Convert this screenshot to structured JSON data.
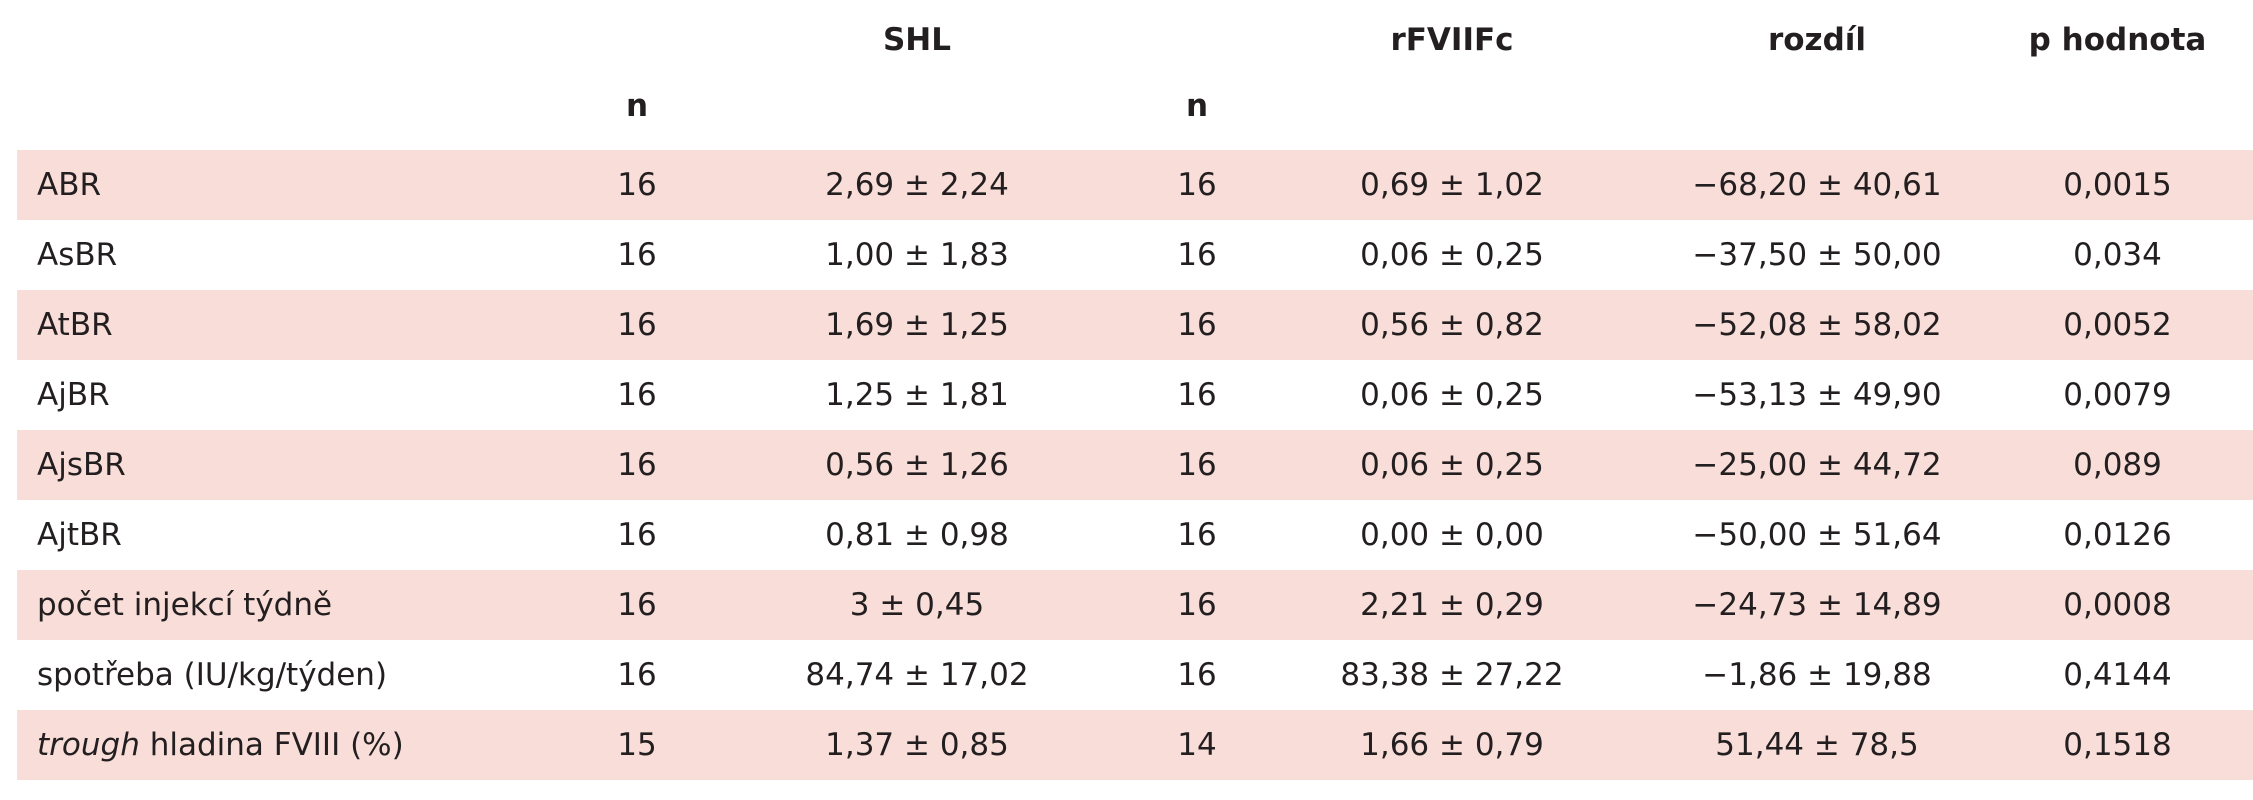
{
  "header": {
    "group1": "SHL",
    "group2": "rFVIIFc",
    "diff": "rozdíl",
    "p": "p hodnota",
    "n1": "n",
    "n2": "n"
  },
  "rows": [
    {
      "label": "ABR",
      "n1": "16",
      "shl": "2,69 ± 2,24",
      "n2": "16",
      "rf": "0,69 ± 1,02",
      "diff": "−68,20 ± 40,61",
      "p": "0,0015"
    },
    {
      "label": "AsBR",
      "n1": "16",
      "shl": "1,00 ± 1,83",
      "n2": "16",
      "rf": "0,06 ± 0,25",
      "diff": "−37,50 ± 50,00",
      "p": "0,034"
    },
    {
      "label": "AtBR",
      "n1": "16",
      "shl": "1,69 ± 1,25",
      "n2": "16",
      "rf": "0,56 ± 0,82",
      "diff": "−52,08 ± 58,02",
      "p": "0,0052"
    },
    {
      "label": "AjBR",
      "n1": "16",
      "shl": "1,25 ± 1,81",
      "n2": "16",
      "rf": "0,06 ± 0,25",
      "diff": "−53,13 ± 49,90",
      "p": "0,0079"
    },
    {
      "label": "AjsBR",
      "n1": "16",
      "shl": "0,56 ± 1,26",
      "n2": "16",
      "rf": "0,06 ± 0,25",
      "diff": "−25,00 ± 44,72",
      "p": "0,089"
    },
    {
      "label": "AjtBR",
      "n1": "16",
      "shl": "0,81 ± 0,98",
      "n2": "16",
      "rf": "0,00 ± 0,00",
      "diff": "−50,00 ± 51,64",
      "p": "0,0126"
    },
    {
      "label": "počet injekcí týdně",
      "n1": "16",
      "shl": "3 ± 0,45",
      "n2": "16",
      "rf": "2,21 ± 0,29",
      "diff": "−24,73 ± 14,89",
      "p": "0,0008"
    },
    {
      "label": "spotřeba (IU/kg/týden)",
      "n1": "16",
      "shl": "84,74 ± 17,02",
      "n2": "16",
      "rf": "83,38 ± 27,22",
      "diff": "−1,86 ± 19,88",
      "p": "0,4144"
    },
    {
      "label_em": "trough",
      "label": " hladina FVIII (%)",
      "n1": "15",
      "shl": "1,37 ± 0,85",
      "n2": "14",
      "rf": "1,66 ± 0,79",
      "diff": "51,44 ± 78,5",
      "p": "0,1518"
    }
  ],
  "colors": {
    "row_shade": "#f9ddd8",
    "text": "#231f20"
  }
}
